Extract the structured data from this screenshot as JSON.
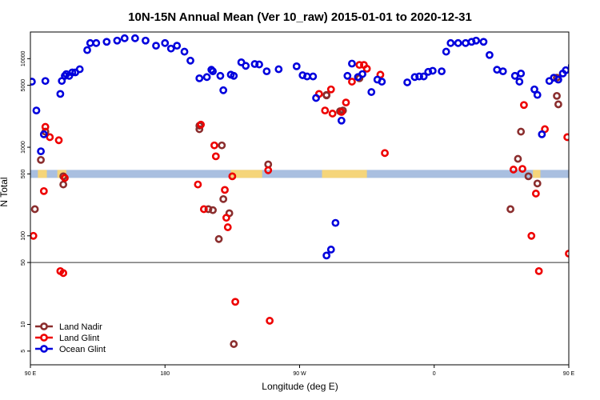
{
  "chart_data": {
    "type": "scatter",
    "title": "10N-15N Annual Mean (Ver 10_raw)   2015-01-01 to 2020-12-31",
    "xlabel": "Longitude (deg E)",
    "ylabel": "N Total",
    "xlim": [
      90,
      450
    ],
    "y_scale": "log",
    "ylim": [
      3.5,
      20000
    ],
    "x_ticks": [
      {
        "value": 90,
        "label": "90 E"
      },
      {
        "value": 180,
        "label": "180"
      },
      {
        "value": 270,
        "label": "90 W"
      },
      {
        "value": 360,
        "label": "0"
      },
      {
        "value": 450,
        "label": "90 E"
      },
      {
        "value": 540,
        "label": "180"
      }
    ],
    "y_ticks": [
      {
        "value": 5,
        "label": "5"
      },
      {
        "value": 10,
        "label": "10"
      },
      {
        "value": 50,
        "label": "50"
      },
      {
        "value": 100,
        "label": "100"
      },
      {
        "value": 500,
        "label": "500"
      },
      {
        "value": 1000,
        "label": "1000"
      },
      {
        "value": 5000,
        "label": "5000"
      },
      {
        "value": 10000,
        "label": "10000"
      }
    ],
    "reference_line_y": 50,
    "band": {
      "y": 500,
      "land_color": "#F5D57A",
      "ocean_color": "#A9BFE0"
    },
    "legend_position": "bottom-left",
    "series": [
      {
        "name": "Land Nadir",
        "color": "#8B2E2E",
        "x": [
          93,
          97,
          100,
          112,
          112,
          203,
          203,
          209,
          212,
          216,
          218,
          219,
          223,
          226,
          249,
          288,
          288,
          297,
          299,
          310,
          411,
          416,
          418,
          423,
          429,
          442,
          442,
          443
        ],
        "y": [
          200,
          720,
          1500,
          470,
          380,
          1750,
          1600,
          200,
          195,
          92,
          1050,
          260,
          180,
          6,
          640,
          3850,
          3900,
          2550,
          2600,
          6000,
          200,
          740,
          1500,
          470,
          390,
          3800,
          6100,
          3050
        ]
      },
      {
        "name": "Land Glint",
        "color": "#EE0000",
        "x": [
          92,
          99,
          100,
          103,
          109,
          110,
          112,
          113,
          202,
          204,
          206,
          213,
          214,
          220,
          221,
          222,
          225,
          227,
          249,
          250,
          283,
          287,
          291,
          292,
          298,
          301,
          305,
          310,
          313,
          315,
          324,
          327,
          413,
          419,
          420,
          425,
          428,
          430,
          434,
          449,
          450
        ],
        "y": [
          100,
          320,
          1700,
          1300,
          1200,
          40,
          38,
          450,
          380,
          1800,
          200,
          1050,
          790,
          330,
          160,
          125,
          470,
          18,
          550,
          11,
          4000,
          2600,
          4500,
          2400,
          2500,
          3200,
          5500,
          8500,
          8500,
          7700,
          6600,
          860,
          560,
          570,
          3000,
          100,
          300,
          40,
          1600,
          1300,
          63
        ]
      },
      {
        "name": "Ocean Glint",
        "color": "#0000DD",
        "x": [
          91,
          94,
          97,
          99,
          100,
          110,
          111,
          113,
          114,
          116,
          118,
          120,
          123,
          128,
          130,
          134,
          141,
          148,
          153,
          160,
          167,
          174,
          180,
          184,
          188,
          193,
          197,
          203,
          208,
          211,
          212,
          217,
          219,
          224,
          226,
          231,
          234,
          240,
          243,
          248,
          256,
          268,
          272,
          275,
          279,
          281,
          288,
          291,
          294,
          298,
          302,
          305,
          309,
          312,
          318,
          322,
          325,
          342,
          347,
          350,
          353,
          356,
          359,
          365,
          368,
          371,
          376,
          381,
          385,
          388,
          393,
          397,
          402,
          406,
          414,
          417,
          418,
          427,
          429,
          432,
          437,
          440,
          443,
          446,
          448,
          452,
          454,
          457
        ],
        "y": [
          5500,
          2600,
          900,
          1400,
          5600,
          4000,
          5600,
          6400,
          6700,
          6400,
          7000,
          7000,
          7600,
          12500,
          15000,
          15000,
          15500,
          16000,
          17000,
          17000,
          16000,
          14000,
          15000,
          13000,
          14000,
          12000,
          9500,
          6000,
          6200,
          7500,
          7200,
          6400,
          4400,
          6600,
          6400,
          9100,
          8300,
          8700,
          8600,
          7200,
          7600,
          8200,
          6500,
          6300,
          6300,
          3600,
          60,
          70,
          140,
          2000,
          6400,
          8800,
          6200,
          6700,
          4200,
          5800,
          5500,
          5400,
          6200,
          6300,
          6300,
          7100,
          7300,
          7200,
          12000,
          15000,
          15000,
          15000,
          15500,
          16000,
          15500,
          11000,
          7500,
          7200,
          6400,
          5500,
          6800,
          4500,
          3900,
          1400,
          5600,
          6100,
          5800,
          6800,
          7400,
          8300,
          7100,
          12500
        ]
      }
    ]
  }
}
